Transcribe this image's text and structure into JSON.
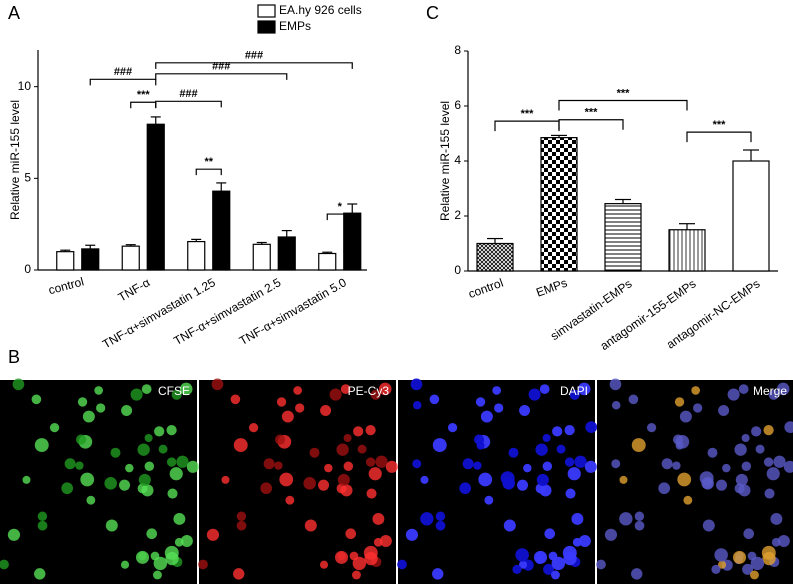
{
  "panels": [
    "A",
    "B",
    "C"
  ],
  "images": [
    "CFSE",
    "PE-Cy3",
    "DAPI",
    "Merge"
  ],
  "chart_data": [
    {
      "type": "bar",
      "ylabel": "Relative miR-155 level",
      "categories": [
        "control",
        "TNF-α",
        "TNF-α+simvastatin 1.25",
        "TNF-α+simvastatin 2.5",
        "TNF-α+simvastatin 5.0"
      ],
      "series": [
        {
          "name": "EA.hy 926 cells",
          "color": "#ffffff",
          "values": [
            1.0,
            1.3,
            1.55,
            1.4,
            0.9
          ],
          "errors": [
            0.08,
            0.08,
            0.12,
            0.1,
            0.07
          ]
        },
        {
          "name": "EMPs",
          "color": "#000000",
          "values": [
            1.15,
            7.95,
            4.3,
            1.8,
            3.1
          ],
          "errors": [
            0.2,
            0.4,
            0.45,
            0.35,
            0.5
          ]
        }
      ],
      "ylim": [
        0,
        12
      ],
      "yticks": [
        0,
        5,
        10
      ],
      "legend": "upper right",
      "annotations": [
        "###",
        "***",
        "###",
        "###",
        "###",
        "**",
        "*"
      ]
    },
    {
      "type": "bar",
      "ylabel": "Relative miR-155 level",
      "categories": [
        "control",
        "EMPs",
        "simvastatin-EMPs",
        "antagomir-155-EMPs",
        "antagomir-NC-EMPs"
      ],
      "values": [
        1.0,
        4.85,
        2.45,
        1.5,
        4.0
      ],
      "errors": [
        0.18,
        0.08,
        0.15,
        0.22,
        0.4
      ],
      "patterns": [
        "crosshatch",
        "checker",
        "hlines",
        "vlines",
        "none"
      ],
      "ylim": [
        0,
        8
      ],
      "yticks": [
        0,
        2,
        4,
        6,
        8
      ],
      "annotations": [
        "***",
        "***",
        "***",
        "***"
      ]
    }
  ]
}
